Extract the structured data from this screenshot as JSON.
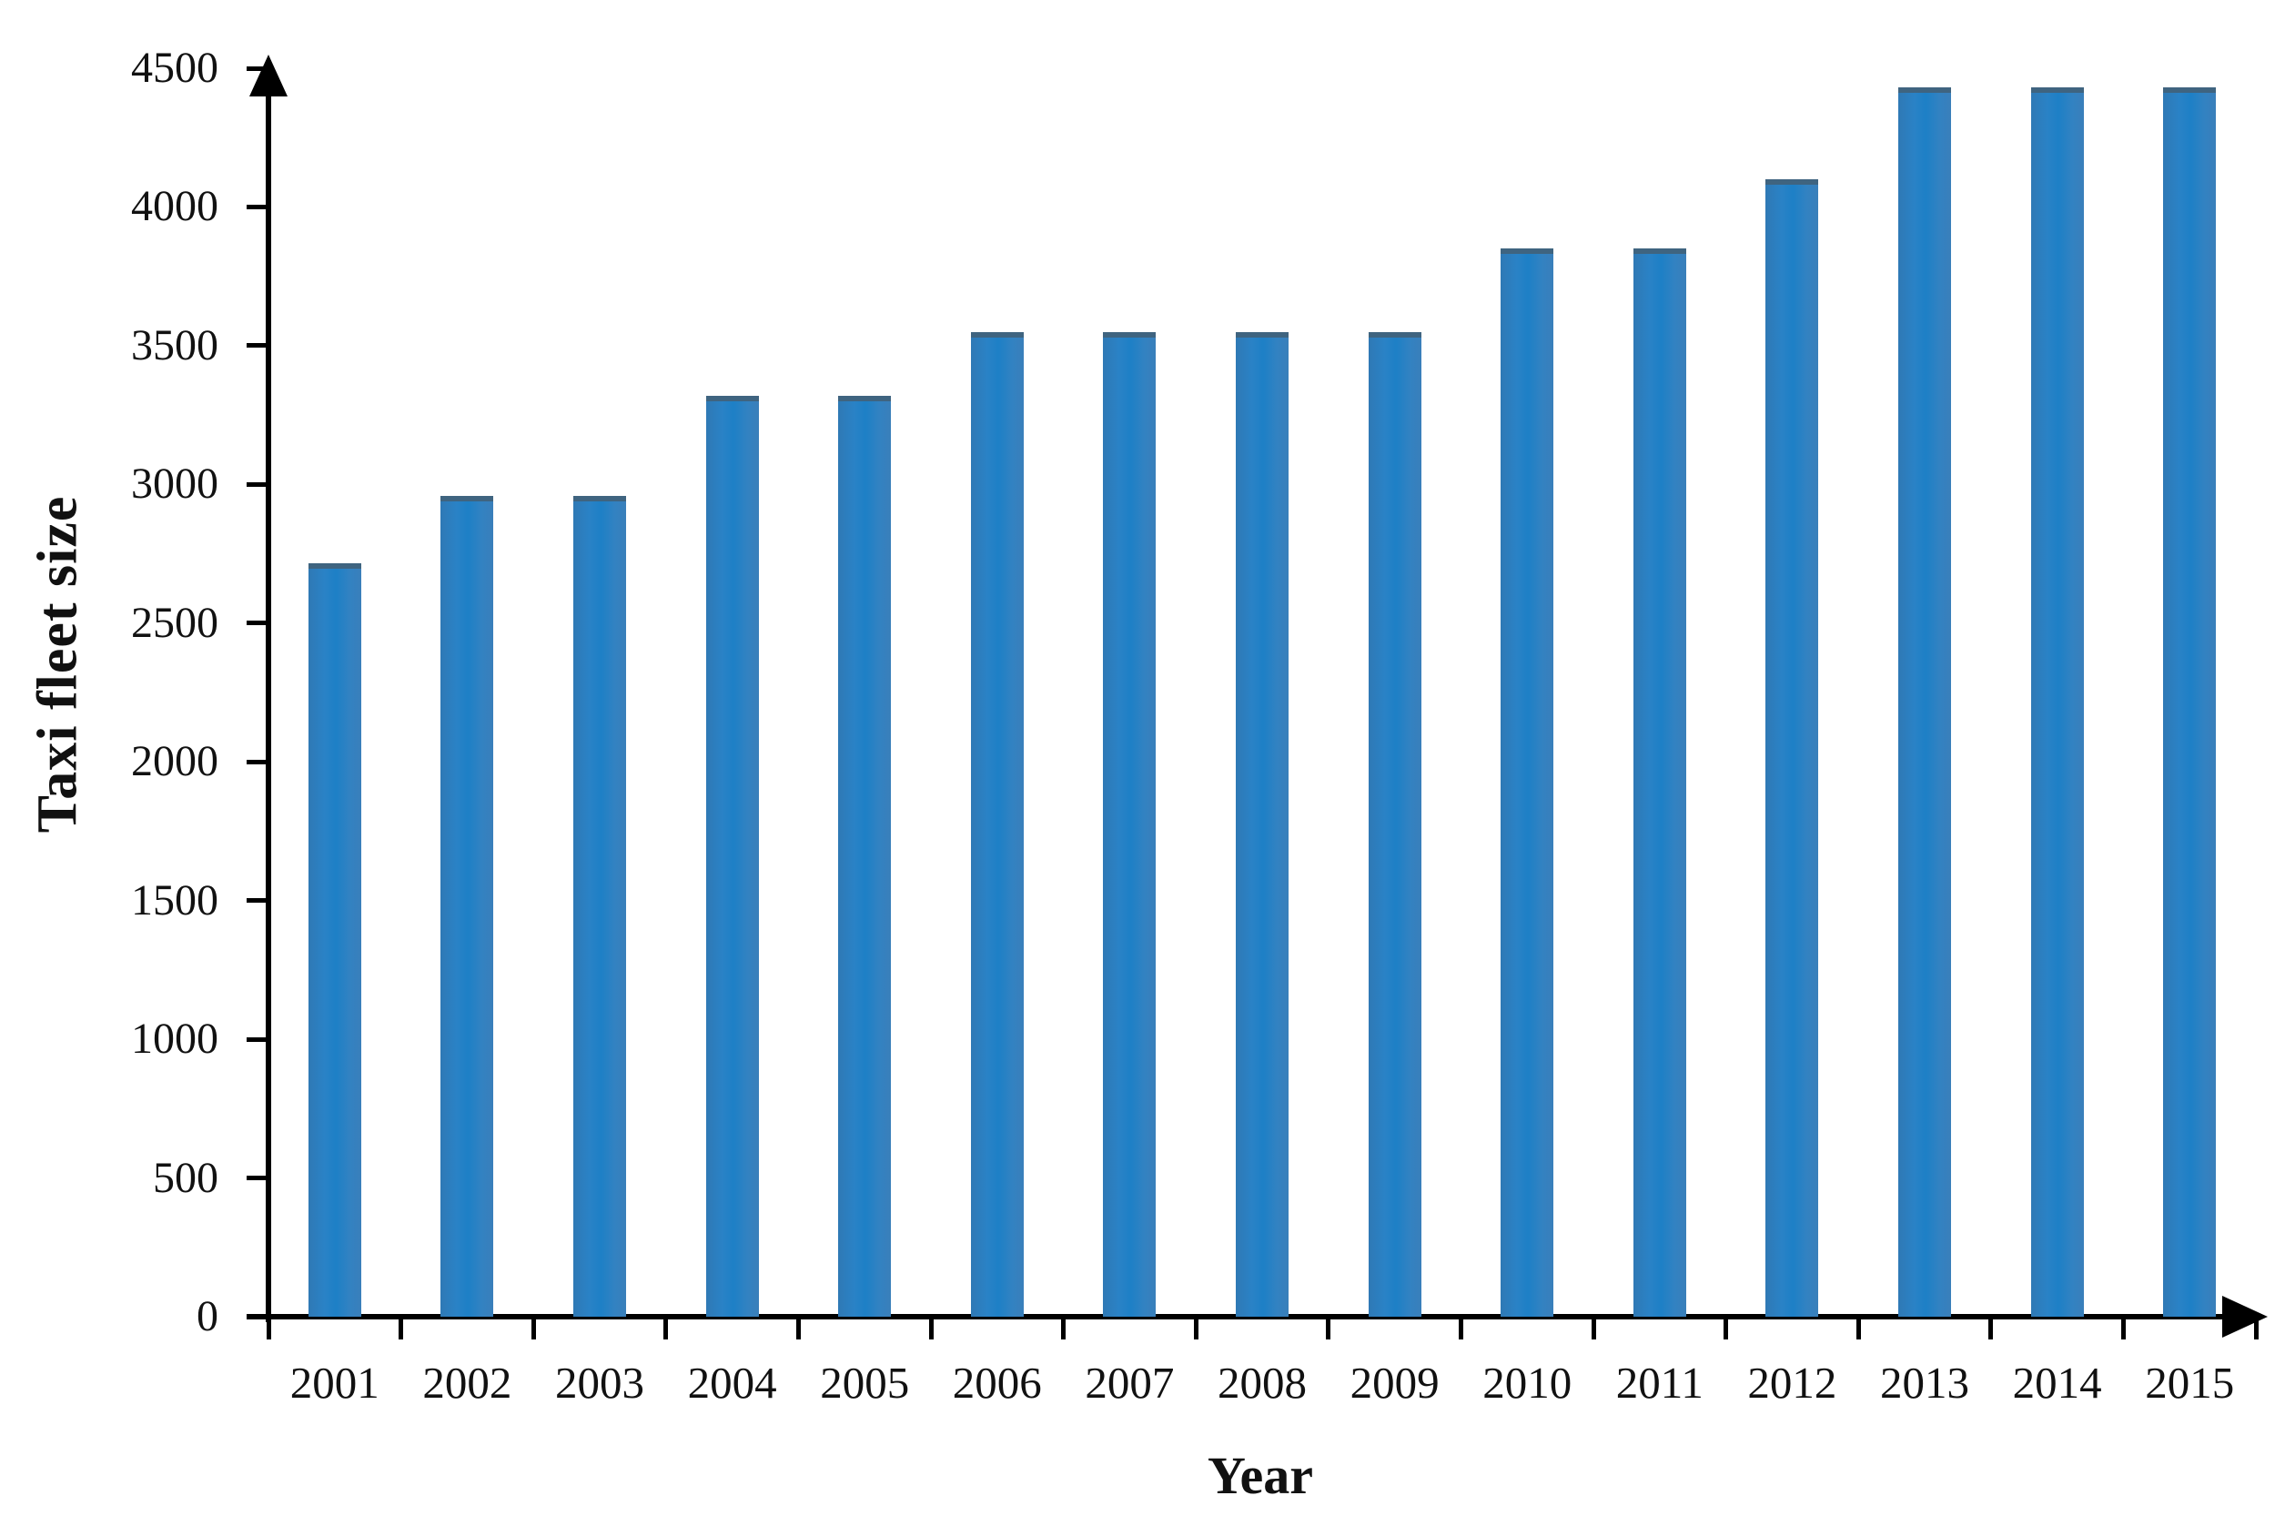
{
  "figure": {
    "background_color": "#ffffff",
    "text_color": "#111111",
    "axis_color": "#000000"
  },
  "chart_data": {
    "type": "bar",
    "title": "",
    "xlabel": "Year",
    "ylabel": "Taxi fleet size",
    "categories": [
      "2001",
      "2002",
      "2003",
      "2004",
      "2005",
      "2006",
      "2007",
      "2008",
      "2009",
      "2010",
      "2011",
      "2012",
      "2013",
      "2014",
      "2015"
    ],
    "values": [
      2715,
      2960,
      2960,
      3320,
      3320,
      3550,
      3550,
      3550,
      3550,
      3850,
      3850,
      4100,
      4430,
      4430,
      4430
    ],
    "ylim": [
      0,
      4500
    ],
    "yticks": [
      0,
      500,
      1000,
      1500,
      2000,
      2500,
      3000,
      3500,
      4000,
      4500
    ],
    "ytick_labels": [
      "0",
      "500",
      "1000",
      "1500",
      "2000",
      "2500",
      "3000",
      "3500",
      "4000",
      "4500"
    ],
    "grid": false,
    "legend_position": "none",
    "bar_color": "#2b80c4",
    "bar_cap_color": "#3f6480"
  }
}
